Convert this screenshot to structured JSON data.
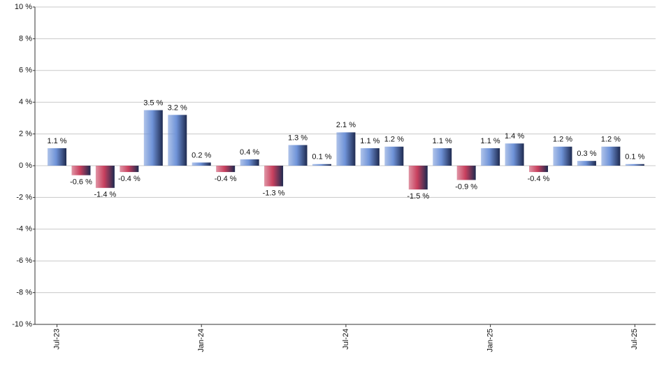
{
  "chart_data": {
    "type": "bar",
    "categories": [
      "Jul-23",
      null,
      null,
      null,
      null,
      null,
      "Jan-24",
      null,
      null,
      null,
      null,
      null,
      "Jul-24",
      null,
      null,
      null,
      null,
      null,
      "Jan-25",
      null,
      null,
      null,
      null,
      null,
      "Jul-25"
    ],
    "values": [
      1.1,
      -0.6,
      -1.4,
      -0.4,
      3.5,
      3.2,
      0.2,
      -0.4,
      0.4,
      -1.3,
      1.3,
      0.1,
      2.1,
      1.1,
      1.2,
      -1.5,
      1.1,
      -0.9,
      1.1,
      1.4,
      -0.4,
      1.2,
      0.3,
      1.2,
      0.1
    ],
    "value_labels": [
      "1.1 %",
      "-0.6 %",
      "-1.4 %",
      "-0.4 %",
      "3.5 %",
      "3.2 %",
      "0.2 %",
      "-0.4 %",
      "0.4 %",
      "-1.3 %",
      "1.3 %",
      "0.1 %",
      "2.1 %",
      "1.1 %",
      "1.2 %",
      "-1.5 %",
      "1.1 %",
      "-0.9 %",
      "1.1 %",
      "1.4 %",
      "-0.4 %",
      "1.2 %",
      "0.3 %",
      "1.2 %",
      "0.1 %"
    ],
    "color": "#6f93d8",
    "negative_color": "#c8405e",
    "ylim": [
      -10,
      10
    ],
    "yticks": [
      {
        "value": -10,
        "label": "-10 %"
      },
      {
        "value": -8,
        "label": "-8 %"
      },
      {
        "value": -6,
        "label": "-6 %"
      },
      {
        "value": -4,
        "label": "-4 %"
      },
      {
        "value": -2,
        "label": "-2 %"
      },
      {
        "value": 0,
        "label": "0 %"
      },
      {
        "value": 2,
        "label": "2 %"
      },
      {
        "value": 4,
        "label": "4 %"
      },
      {
        "value": 6,
        "label": "6 %"
      },
      {
        "value": 8,
        "label": "8 %"
      },
      {
        "value": 10,
        "label": "10 %"
      }
    ],
    "grid": true
  }
}
